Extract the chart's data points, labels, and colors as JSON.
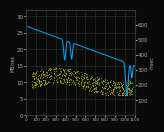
{
  "bg_color": "#0a0a0a",
  "grid_color": "#2a3a2a",
  "blue_color": "#00aaff",
  "yellow_color": "#cccc00",
  "left_ylim": [
    0,
    32
  ],
  "right_ylim": [
    0,
    700
  ],
  "xlim": [
    0,
    1100
  ],
  "left_yticks": [
    0,
    5,
    10,
    15,
    20,
    25,
    30
  ],
  "right_yticks": [
    100,
    200,
    300,
    400,
    500,
    600
  ],
  "xticks": [
    0,
    100,
    200,
    300,
    400,
    500,
    600,
    700,
    800,
    900,
    1000,
    1100
  ],
  "title_left": "MB/sec",
  "title_right": "msec",
  "tick_color": "#aaaaaa",
  "tick_fontsize": 4
}
